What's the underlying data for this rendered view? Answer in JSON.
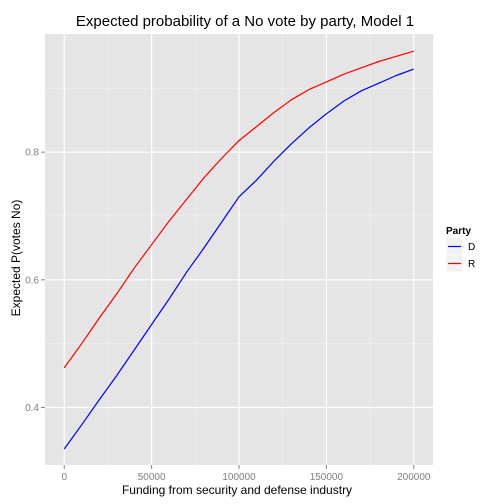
{
  "chart_data": {
    "type": "line",
    "title": "Expected probability of a No vote by party, Model 1",
    "xlabel": "Funding from security and defense industry",
    "ylabel": "Expected P(votes No)",
    "xlim": [
      -11000,
      211000
    ],
    "ylim": [
      0.31,
      0.985
    ],
    "x_ticks": [
      0,
      50000,
      100000,
      150000,
      200000
    ],
    "y_ticks": [
      0.4,
      0.6,
      0.8
    ],
    "x_tick_labels": [
      "0",
      "50000",
      "100000",
      "150000",
      "200000"
    ],
    "y_tick_labels": [
      "0.4",
      "0.6",
      "0.8"
    ],
    "grid": true,
    "legend": {
      "title": "Party",
      "position": "right"
    },
    "x": [
      0,
      10000,
      20000,
      30000,
      40000,
      50000,
      60000,
      70000,
      80000,
      90000,
      100000,
      110000,
      120000,
      130000,
      140000,
      150000,
      160000,
      170000,
      180000,
      190000,
      200000
    ],
    "series": [
      {
        "name": "D",
        "color": "#0000ff",
        "values": [
          0.335,
          0.373,
          0.412,
          0.45,
          0.49,
          0.53,
          0.57,
          0.612,
          0.65,
          0.69,
          0.73,
          0.756,
          0.786,
          0.813,
          0.838,
          0.86,
          0.88,
          0.896,
          0.908,
          0.92,
          0.93
        ]
      },
      {
        "name": "R",
        "color": "#ff0000",
        "values": [
          0.462,
          0.5,
          0.54,
          0.578,
          0.618,
          0.655,
          0.692,
          0.726,
          0.76,
          0.79,
          0.818,
          0.84,
          0.862,
          0.882,
          0.898,
          0.91,
          0.922,
          0.932,
          0.942,
          0.95,
          0.958
        ]
      }
    ]
  }
}
